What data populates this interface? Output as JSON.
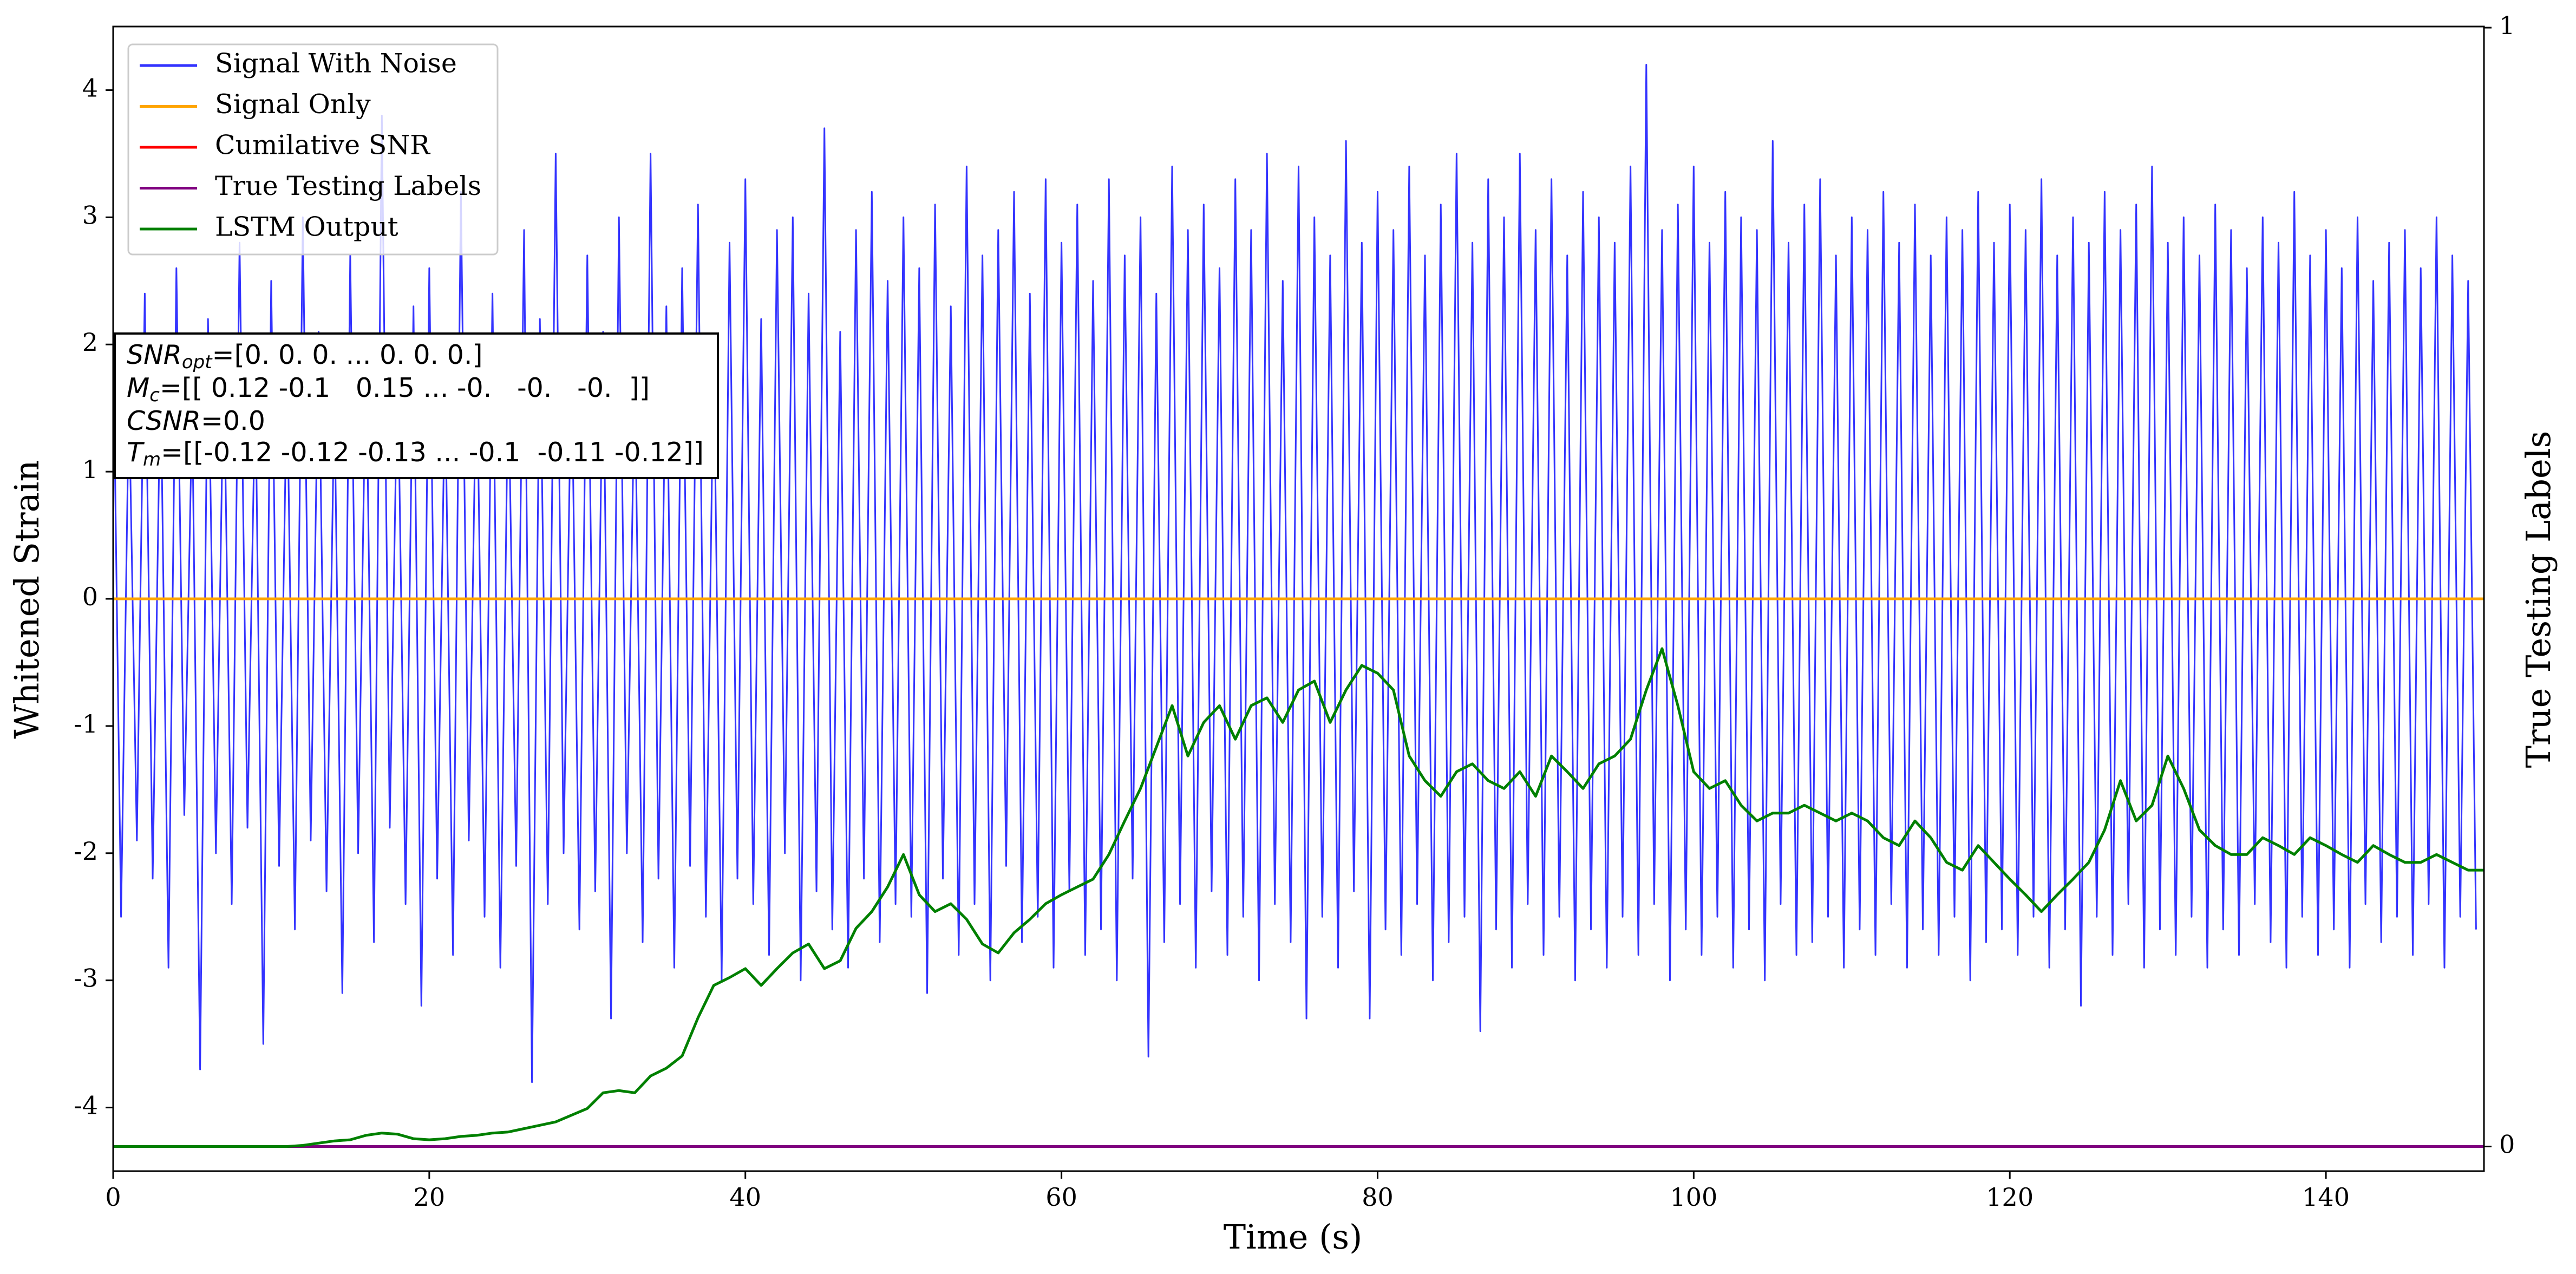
{
  "chart_data": {
    "type": "line",
    "xlabel": "Time (s)",
    "ylabel": "Whitened Strain",
    "y2label": "True Testing Labels",
    "xlim": [
      0,
      150
    ],
    "xticks": [
      0,
      20,
      40,
      60,
      80,
      100,
      120,
      140
    ],
    "ylim": [
      -4.5,
      4.5
    ],
    "yticks": [
      -4,
      -3,
      -2,
      -1,
      0,
      1,
      2,
      3,
      4
    ],
    "y2lim": [
      -0.022,
      1.001
    ],
    "y2ticks": [
      0,
      1
    ],
    "grid": false,
    "legend": "upper left",
    "annotations": [
      {
        "symbol": "SNR",
        "subscript": "opt",
        "text": "=[0. 0. 0. ... 0. 0. 0.]"
      },
      {
        "symbol": "M",
        "subscript": "c",
        "text": "=[[ 0.12 -0.1   0.15 ... -0.   -0.   -0.  ]]"
      },
      {
        "symbol": "CSNR",
        "text": "=0.0"
      },
      {
        "symbol": "T",
        "subscript": "m",
        "text": "=[[-0.12 -0.12 -0.13 ... -0.1  -0.11 -0.12]]"
      }
    ],
    "series": [
      {
        "name": "Signal With Noise",
        "color": "#3333ff",
        "x": [
          0,
          0.5,
          1,
          1.5,
          2,
          2.5,
          3,
          3.5,
          4,
          4.5,
          5,
          5.5,
          6,
          6.5,
          7,
          7.5,
          8,
          8.5,
          9,
          9.5,
          10,
          10.5,
          11,
          11.5,
          12,
          12.5,
          13,
          13.5,
          14,
          14.5,
          15,
          15.5,
          16,
          16.5,
          17,
          17.5,
          18,
          18.5,
          19,
          19.5,
          20,
          20.5,
          21,
          21.5,
          22,
          22.5,
          23,
          23.5,
          24,
          24.5,
          25,
          25.5,
          26,
          26.5,
          27,
          27.5,
          28,
          28.5,
          29,
          29.5,
          30,
          30.5,
          31,
          31.5,
          32,
          32.5,
          33,
          33.5,
          34,
          34.5,
          35,
          35.5,
          36,
          36.5,
          37,
          37.5,
          38,
          38.5,
          39,
          39.5,
          40,
          40.5,
          41,
          41.5,
          42,
          42.5,
          43,
          43.5,
          44,
          44.5,
          45,
          45.5,
          46,
          46.5,
          47,
          47.5,
          48,
          48.5,
          49,
          49.5,
          50,
          50.5,
          51,
          51.5,
          52,
          52.5,
          53,
          53.5,
          54,
          54.5,
          55,
          55.5,
          56,
          56.5,
          57,
          57.5,
          58,
          58.5,
          59,
          59.5,
          60,
          60.5,
          61,
          61.5,
          62,
          62.5,
          63,
          63.5,
          64,
          64.5,
          65,
          65.5,
          66,
          66.5,
          67,
          67.5,
          68,
          68.5,
          69,
          69.5,
          70,
          70.5,
          71,
          71.5,
          72,
          72.5,
          73,
          73.5,
          74,
          74.5,
          75,
          75.5,
          76,
          76.5,
          77,
          77.5,
          78,
          78.5,
          79,
          79.5,
          80,
          80.5,
          81,
          81.5,
          82,
          82.5,
          83,
          83.5,
          84,
          84.5,
          85,
          85.5,
          86,
          86.5,
          87,
          87.5,
          88,
          88.5,
          89,
          89.5,
          90,
          90.5,
          91,
          91.5,
          92,
          92.5,
          93,
          93.5,
          94,
          94.5,
          95,
          95.5,
          96,
          96.5,
          97,
          97.5,
          98,
          98.5,
          99,
          99.5,
          100,
          100.5,
          101,
          101.5,
          102,
          102.5,
          103,
          103.5,
          104,
          104.5,
          105,
          105.5,
          106,
          106.5,
          107,
          107.5,
          108,
          108.5,
          109,
          109.5,
          110,
          110.5,
          111,
          111.5,
          112,
          112.5,
          113,
          113.5,
          114,
          114.5,
          115,
          115.5,
          116,
          116.5,
          117,
          117.5,
          118,
          118.5,
          119,
          119.5,
          120,
          120.5,
          121,
          121.5,
          122,
          122.5,
          123,
          123.5,
          124,
          124.5,
          125,
          125.5,
          126,
          126.5,
          127,
          127.5,
          128,
          128.5,
          129,
          129.5,
          130,
          130.5,
          131,
          131.5,
          132,
          132.5,
          133,
          133.5,
          134,
          134.5,
          135,
          135.5,
          136,
          136.5,
          137,
          137.5,
          138,
          138.5,
          139,
          139.5,
          140,
          140.5,
          141,
          141.5,
          142,
          142.5,
          143,
          143.5,
          144,
          144.5,
          145,
          145.5,
          146,
          146.5,
          147,
          147.5,
          148,
          148.5,
          149,
          149.5
        ],
        "values": [
          2.1,
          -2.5,
          1.6,
          -1.9,
          2.4,
          -2.2,
          1.8,
          -2.9,
          2.6,
          -1.7,
          1.5,
          -3.7,
          2.2,
          -2.0,
          1.9,
          -2.4,
          2.8,
          -1.8,
          1.7,
          -3.5,
          2.5,
          -2.1,
          1.8,
          -2.6,
          3.0,
          -1.9,
          2.1,
          -2.3,
          1.6,
          -3.1,
          2.7,
          -2.0,
          2.0,
          -2.7,
          3.8,
          -1.8,
          1.9,
          -2.4,
          2.3,
          -3.2,
          2.6,
          -2.2,
          1.7,
          -2.8,
          3.2,
          -1.9,
          2.0,
          -2.5,
          2.4,
          -2.9,
          1.8,
          -2.1,
          2.9,
          -3.8,
          2.2,
          -2.4,
          3.5,
          -2.0,
          1.9,
          -2.6,
          2.7,
          -2.3,
          2.1,
          -3.3,
          3.0,
          -2.0,
          1.8,
          -2.7,
          3.5,
          -2.2,
          2.3,
          -2.9,
          2.6,
          -2.1,
          3.1,
          -2.5,
          2.0,
          -3.0,
          2.8,
          -2.2,
          3.3,
          -2.4,
          2.2,
          -2.8,
          2.9,
          -2.0,
          3.0,
          -3.0,
          2.4,
          -2.3,
          3.7,
          -2.6,
          2.1,
          -2.9,
          2.9,
          -2.2,
          3.2,
          -2.7,
          2.5,
          -2.4,
          3.0,
          -2.5,
          2.6,
          -3.1,
          3.1,
          -2.2,
          2.3,
          -2.8,
          3.4,
          -2.4,
          2.7,
          -3.0,
          2.9,
          -2.1,
          3.2,
          -2.7,
          2.4,
          -2.5,
          3.3,
          -2.9,
          2.8,
          -2.3,
          3.1,
          -2.8,
          2.5,
          -2.6,
          3.3,
          -3.0,
          2.7,
          -2.2,
          3.0,
          -3.6,
          2.4,
          -2.7,
          3.4,
          -2.4,
          2.9,
          -2.9,
          3.1,
          -2.3,
          2.6,
          -2.8,
          3.3,
          -2.5,
          2.9,
          -3.0,
          3.5,
          -2.4,
          2.5,
          -2.7,
          3.4,
          -3.3,
          3.0,
          -2.5,
          2.7,
          -2.9,
          3.6,
          -2.3,
          2.8,
          -3.3,
          3.2,
          -2.6,
          2.9,
          -2.8,
          3.4,
          -2.4,
          2.7,
          -3.0,
          3.1,
          -2.7,
          3.5,
          -2.5,
          2.8,
          -3.4,
          3.3,
          -2.6,
          3.0,
          -2.9,
          3.5,
          -2.4,
          2.9,
          -2.8,
          3.3,
          -2.5,
          2.7,
          -3.0,
          3.2,
          -2.6,
          3.0,
          -2.9,
          2.8,
          -2.5,
          3.4,
          -2.8,
          4.2,
          -2.4,
          2.9,
          -3.0,
          3.1,
          -2.6,
          3.4,
          -2.8,
          2.8,
          -2.5,
          3.2,
          -2.9,
          3.0,
          -2.6,
          2.9,
          -3.0,
          3.6,
          -2.4,
          2.8,
          -2.8,
          3.1,
          -2.7,
          3.3,
          -2.5,
          2.7,
          -2.9,
          3.0,
          -2.6,
          2.9,
          -2.8,
          3.2,
          -2.4,
          2.8,
          -2.9,
          3.1,
          -2.6,
          2.7,
          -2.8,
          3.0,
          -2.5,
          2.9,
          -3.0,
          3.2,
          -2.7,
          2.8,
          -2.6,
          3.1,
          -2.8,
          2.9,
          -2.5,
          3.3,
          -2.9,
          2.7,
          -2.6,
          3.0,
          -3.2,
          2.8,
          -2.5,
          3.2,
          -2.8,
          2.9,
          -2.4,
          3.1,
          -2.9,
          3.4,
          -2.6,
          2.8,
          -2.8,
          3.0,
          -2.5,
          2.7,
          -2.9,
          3.1,
          -2.6,
          2.9,
          -2.8,
          2.6,
          -2.4,
          3.0,
          -2.7,
          2.8,
          -2.9,
          3.2,
          -2.5,
          2.7,
          -2.8,
          2.9,
          -2.6,
          2.6,
          -2.9,
          3.0,
          -2.4,
          2.5,
          -2.7,
          2.8,
          -2.5,
          2.9,
          -2.8,
          2.6,
          -2.4,
          3.0,
          -2.9,
          2.7,
          -2.5,
          2.5,
          -2.6
        ]
      },
      {
        "name": "Signal Only",
        "color": "orange",
        "x": [
          0,
          150
        ],
        "values": [
          0,
          0
        ]
      },
      {
        "name": "Cumilative SNR",
        "color": "red",
        "axis": "y2",
        "x": [
          0,
          150
        ],
        "values": [
          0,
          0
        ]
      },
      {
        "name": "True Testing Labels",
        "color": "purple",
        "axis": "y2",
        "x": [
          0,
          150
        ],
        "values": [
          0,
          0
        ]
      },
      {
        "name": "LSTM Output",
        "color": "green",
        "axis": "y2",
        "x": [
          0,
          1,
          2,
          3,
          4,
          5,
          6,
          7,
          8,
          9,
          10,
          11,
          12,
          13,
          14,
          15,
          16,
          17,
          18,
          19,
          20,
          21,
          22,
          23,
          24,
          25,
          26,
          27,
          28,
          29,
          30,
          31,
          32,
          33,
          34,
          35,
          36,
          37,
          38,
          39,
          40,
          41,
          42,
          43,
          44,
          45,
          46,
          47,
          48,
          49,
          50,
          51,
          52,
          53,
          54,
          55,
          56,
          57,
          58,
          59,
          60,
          61,
          62,
          63,
          64,
          65,
          66,
          67,
          68,
          69,
          70,
          71,
          72,
          73,
          74,
          75,
          76,
          77,
          78,
          79,
          80,
          81,
          82,
          83,
          84,
          85,
          86,
          87,
          88,
          89,
          90,
          91,
          92,
          93,
          94,
          95,
          96,
          97,
          98,
          99,
          100,
          101,
          102,
          103,
          104,
          105,
          106,
          107,
          108,
          109,
          110,
          111,
          112,
          113,
          114,
          115,
          116,
          117,
          118,
          119,
          120,
          121,
          122,
          123,
          124,
          125,
          126,
          127,
          128,
          129,
          130,
          131,
          132,
          133,
          134,
          135,
          136,
          137,
          138,
          139,
          140,
          141,
          142,
          143,
          144,
          145,
          146,
          147,
          148,
          149,
          150
        ],
        "values": [
          0,
          0,
          0,
          0,
          0,
          0,
          0,
          0,
          0,
          0,
          0,
          0,
          0.001,
          0.003,
          0.005,
          0.006,
          0.01,
          0.012,
          0.011,
          0.007,
          0.006,
          0.007,
          0.009,
          0.01,
          0.012,
          0.013,
          0.016,
          0.019,
          0.022,
          0.028,
          0.034,
          0.048,
          0.05,
          0.048,
          0.063,
          0.07,
          0.081,
          0.115,
          0.144,
          0.151,
          0.159,
          0.144,
          0.159,
          0.173,
          0.181,
          0.159,
          0.166,
          0.195,
          0.21,
          0.232,
          0.261,
          0.225,
          0.21,
          0.217,
          0.203,
          0.181,
          0.173,
          0.191,
          0.203,
          0.217,
          0.225,
          0.232,
          0.239,
          0.261,
          0.291,
          0.32,
          0.357,
          0.394,
          0.349,
          0.379,
          0.394,
          0.364,
          0.394,
          0.401,
          0.379,
          0.408,
          0.416,
          0.379,
          0.408,
          0.43,
          0.423,
          0.408,
          0.349,
          0.327,
          0.313,
          0.335,
          0.342,
          0.327,
          0.32,
          0.335,
          0.313,
          0.349,
          0.335,
          0.32,
          0.342,
          0.349,
          0.364,
          0.408,
          0.445,
          0.394,
          0.335,
          0.32,
          0.327,
          0.305,
          0.291,
          0.298,
          0.298,
          0.305,
          0.298,
          0.291,
          0.298,
          0.291,
          0.276,
          0.269,
          0.291,
          0.276,
          0.254,
          0.247,
          0.269,
          0.254,
          0.239,
          0.225,
          0.21,
          0.225,
          0.239,
          0.254,
          0.283,
          0.327,
          0.291,
          0.305,
          0.349,
          0.32,
          0.283,
          0.269,
          0.261,
          0.261,
          0.276,
          0.269,
          0.261,
          0.276,
          0.269,
          0.261,
          0.254,
          0.269,
          0.261,
          0.254,
          0.254,
          0.261,
          0.254,
          0.247,
          0.247
        ]
      }
    ]
  }
}
